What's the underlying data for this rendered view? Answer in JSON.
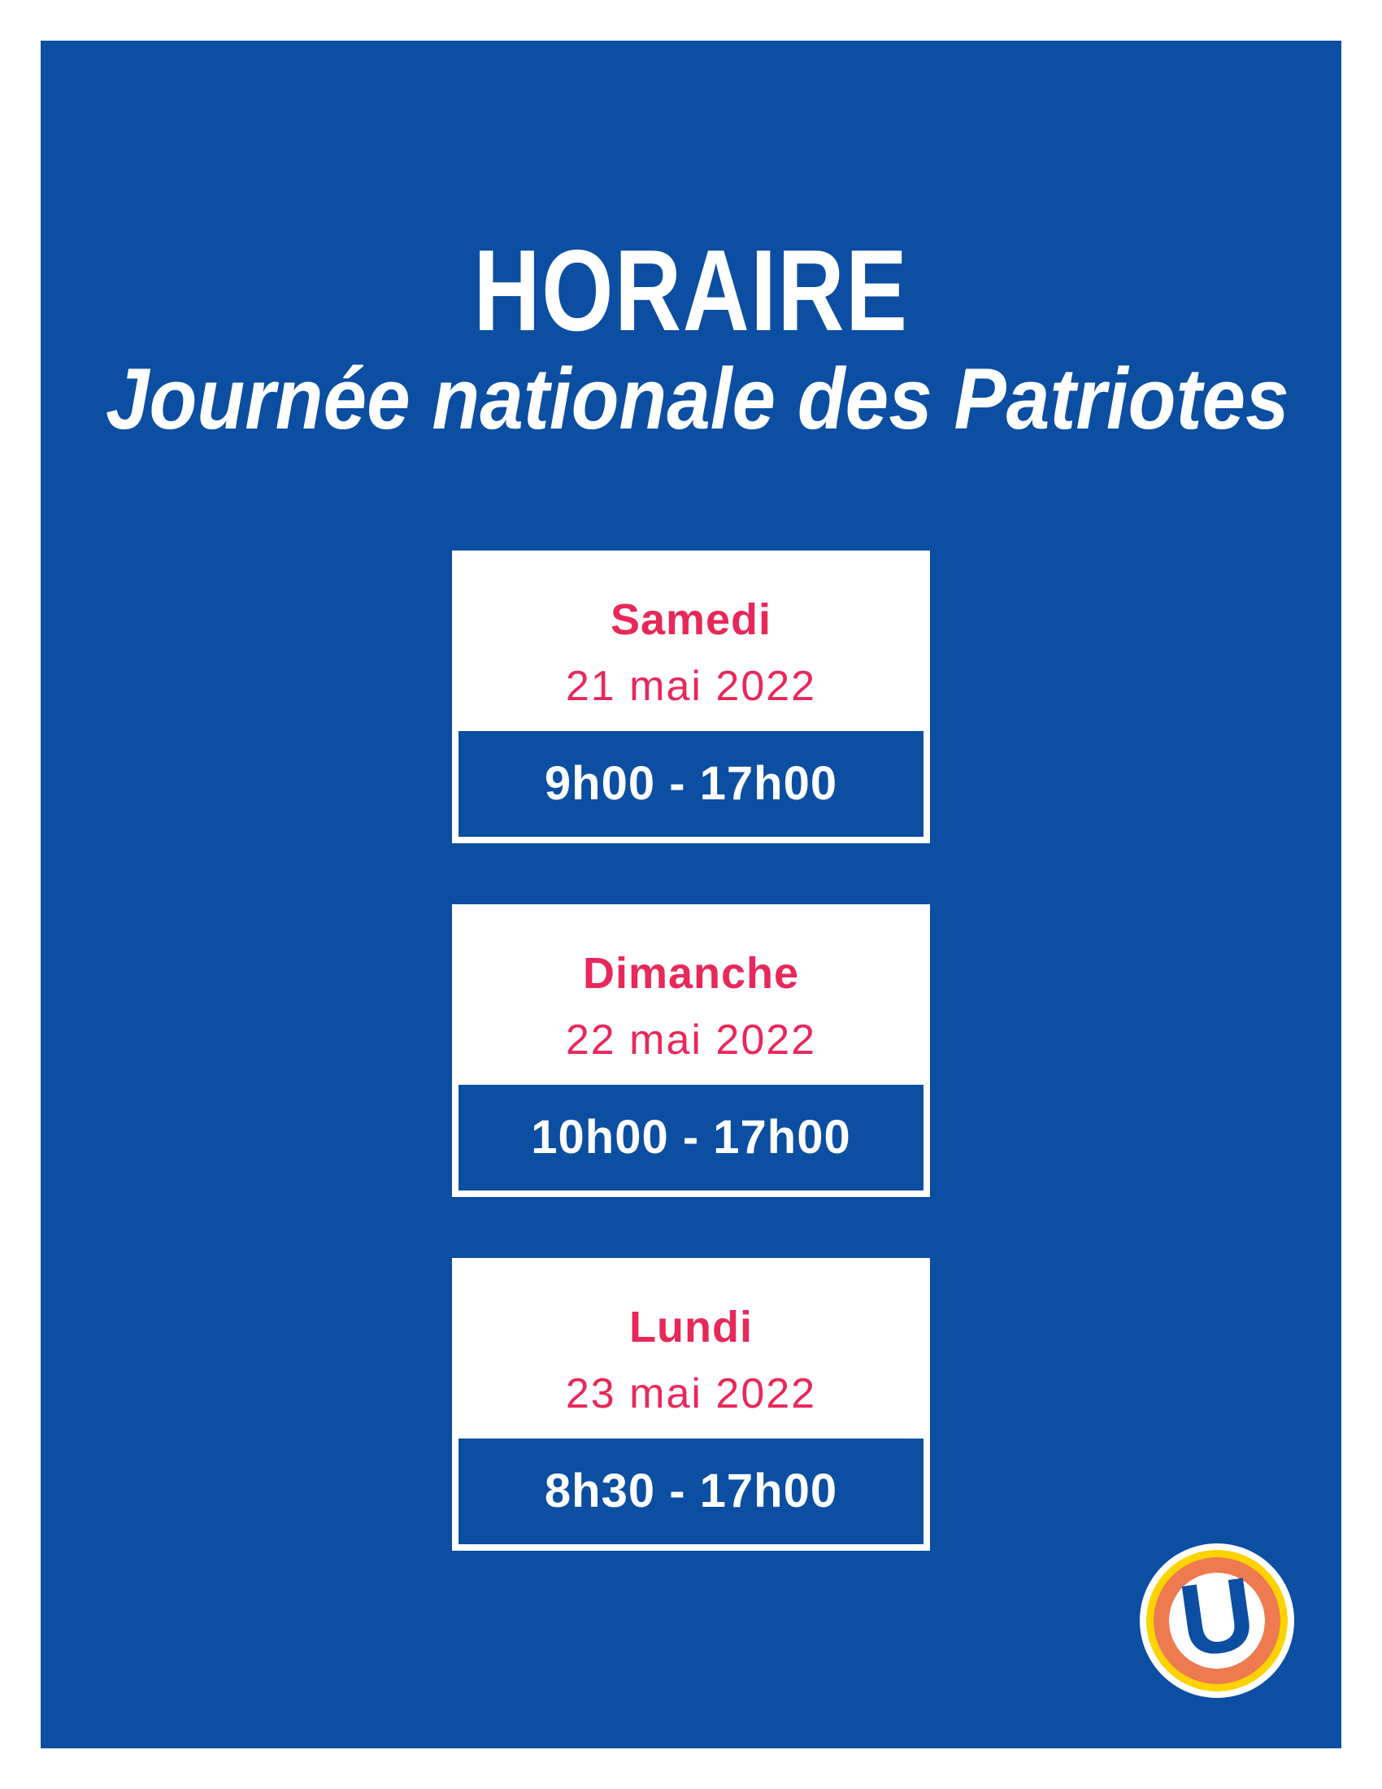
{
  "poster": {
    "title": "HORAIRE",
    "subtitle": "Journée nationale des Patriotes"
  },
  "schedule": [
    {
      "day": "Samedi",
      "date": "21 mai 2022",
      "hours": "9h00 - 17h00"
    },
    {
      "day": "Dimanche",
      "date": "22 mai 2022",
      "hours": "10h00 - 17h00"
    },
    {
      "day": "Lundi",
      "date": "23 mai 2022",
      "hours": "8h30 - 17h00"
    }
  ],
  "logo": {
    "letter": "U"
  },
  "colors": {
    "panel_blue": "#0B4EA2",
    "accent_pink": "#E8285A",
    "logo_orange": "#EE7A50",
    "logo_yellow": "#FFD300",
    "card_white": "#FFFFFF"
  }
}
